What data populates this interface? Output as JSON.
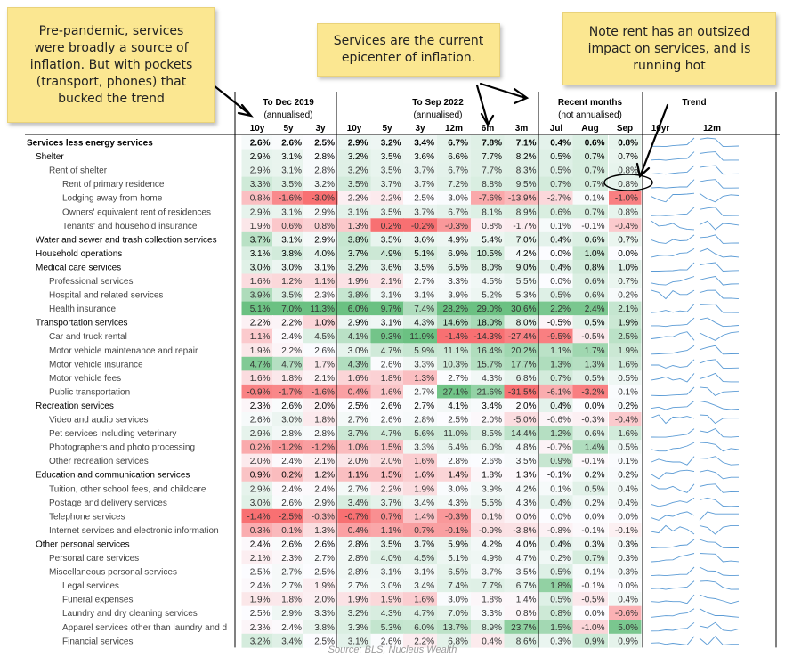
{
  "notes": [
    {
      "text": "Pre-pandemic, services\nwere broadly a source of\ninflation. But with pockets\n(transport, phones) that\nbucked the trend"
    },
    {
      "text": "Services are the current\nepicenter of inflation."
    },
    {
      "text": "Note rent has an outsized\nimpact on services, and is\nrunning hot"
    }
  ],
  "source": "Source: BLS, Nucleus Wealth",
  "chart_data": {
    "type": "table",
    "groups": [
      {
        "title": "To Dec 2019",
        "subtitle": "(annualised)",
        "columns": [
          "10y",
          "5y",
          "3y"
        ]
      },
      {
        "title": "To Sep 2022",
        "subtitle": "(annualised)",
        "columns": [
          "10y",
          "5y",
          "3y",
          "12m",
          "6m",
          "3m"
        ]
      },
      {
        "title": "Recent months",
        "subtitle": "(not annualised)",
        "columns": [
          "Jul",
          "Aug",
          "Sep"
        ]
      },
      {
        "title": "Trend",
        "subtitle": "",
        "columns": [
          "10yr",
          "12m"
        ]
      }
    ],
    "colors": {
      "positive": "#63be7b",
      "negative": "#f8696b",
      "neutral": "#fcfcff",
      "sparkline": "#5b9bd5"
    },
    "rows": [
      {
        "label": "Services less energy services",
        "level": 0,
        "bold": true,
        "values": [
          "2.6%",
          "2.6%",
          "2.5%",
          "2.9%",
          "3.2%",
          "3.4%",
          "6.7%",
          "7.8%",
          "7.1%",
          "0.4%",
          "0.6%",
          "0.8%"
        ]
      },
      {
        "label": "Shelter",
        "level": 1,
        "bold": false,
        "values": [
          "2.9%",
          "3.1%",
          "2.8%",
          "3.2%",
          "3.5%",
          "3.6%",
          "6.6%",
          "7.7%",
          "8.2%",
          "0.5%",
          "0.7%",
          "0.7%"
        ]
      },
      {
        "label": "Rent of shelter",
        "level": 2,
        "bold": false,
        "values": [
          "2.9%",
          "3.1%",
          "2.8%",
          "3.2%",
          "3.5%",
          "3.7%",
          "6.7%",
          "7.7%",
          "8.3%",
          "0.5%",
          "0.7%",
          "0.8%"
        ]
      },
      {
        "label": "Rent of primary residence",
        "level": 3,
        "bold": false,
        "values": [
          "3.3%",
          "3.5%",
          "3.2%",
          "3.5%",
          "3.7%",
          "3.7%",
          "7.2%",
          "8.8%",
          "9.5%",
          "0.7%",
          "0.7%",
          "0.8%"
        ]
      },
      {
        "label": "Lodging away from home",
        "level": 3,
        "bold": false,
        "values": [
          "0.8%",
          "-1.6%",
          "-3.0%",
          "2.2%",
          "2.2%",
          "2.5%",
          "3.0%",
          "-7.6%",
          "-13.9%",
          "-2.7%",
          "0.1%",
          "-1.0%"
        ]
      },
      {
        "label": "Owners' equivalent rent of residences",
        "level": 3,
        "bold": false,
        "values": [
          "2.9%",
          "3.1%",
          "2.9%",
          "3.1%",
          "3.5%",
          "3.7%",
          "6.7%",
          "8.1%",
          "8.9%",
          "0.6%",
          "0.7%",
          "0.8%"
        ]
      },
      {
        "label": "Tenants' and household insurance",
        "level": 3,
        "bold": false,
        "values": [
          "1.9%",
          "0.6%",
          "0.8%",
          "1.3%",
          "0.2%",
          "-0.2%",
          "-0.3%",
          "0.8%",
          "-1.7%",
          "0.1%",
          "-0.1%",
          "-0.4%"
        ]
      },
      {
        "label": "Water and sewer and trash collection services",
        "level": 1,
        "bold": false,
        "values": [
          "3.7%",
          "3.1%",
          "2.9%",
          "3.8%",
          "3.5%",
          "3.6%",
          "4.9%",
          "5.4%",
          "7.0%",
          "0.4%",
          "0.6%",
          "0.7%"
        ]
      },
      {
        "label": "Household operations",
        "level": 1,
        "bold": false,
        "values": [
          "3.1%",
          "3.8%",
          "4.0%",
          "3.7%",
          "4.9%",
          "5.1%",
          "6.9%",
          "10.5%",
          "4.2%",
          "0.0%",
          "1.0%",
          "0.0%"
        ]
      },
      {
        "label": "Medical care services",
        "level": 1,
        "bold": false,
        "values": [
          "3.0%",
          "3.0%",
          "3.1%",
          "3.2%",
          "3.6%",
          "3.5%",
          "6.5%",
          "8.0%",
          "9.0%",
          "0.4%",
          "0.8%",
          "1.0%"
        ]
      },
      {
        "label": "Professional services",
        "level": 2,
        "bold": false,
        "values": [
          "1.6%",
          "1.2%",
          "1.1%",
          "1.9%",
          "2.1%",
          "2.7%",
          "3.3%",
          "4.5%",
          "5.5%",
          "0.0%",
          "0.6%",
          "0.7%"
        ]
      },
      {
        "label": "Hospital and related services",
        "level": 2,
        "bold": false,
        "values": [
          "3.9%",
          "3.5%",
          "2.3%",
          "3.8%",
          "3.1%",
          "3.1%",
          "3.9%",
          "5.2%",
          "5.3%",
          "0.5%",
          "0.6%",
          "0.2%"
        ]
      },
      {
        "label": "Health insurance",
        "level": 2,
        "bold": false,
        "values": [
          "5.1%",
          "7.0%",
          "11.3%",
          "6.0%",
          "9.7%",
          "7.4%",
          "28.2%",
          "29.0%",
          "30.6%",
          "2.2%",
          "2.4%",
          "2.1%"
        ]
      },
      {
        "label": "Transportation services",
        "level": 1,
        "bold": false,
        "values": [
          "2.2%",
          "2.2%",
          "1.0%",
          "2.9%",
          "3.1%",
          "4.3%",
          "14.6%",
          "18.0%",
          "8.0%",
          "-0.5%",
          "0.5%",
          "1.9%"
        ]
      },
      {
        "label": "Car and truck rental",
        "level": 2,
        "bold": false,
        "values": [
          "1.1%",
          "2.4%",
          "4.5%",
          "4.1%",
          "9.3%",
          "11.9%",
          "-1.4%",
          "-14.3%",
          "-27.4%",
          "-9.5%",
          "-0.5%",
          "2.5%"
        ]
      },
      {
        "label": "Motor vehicle maintenance and repair",
        "level": 2,
        "bold": false,
        "values": [
          "1.9%",
          "2.2%",
          "2.6%",
          "3.0%",
          "4.7%",
          "5.9%",
          "11.1%",
          "16.4%",
          "20.2%",
          "1.1%",
          "1.7%",
          "1.9%"
        ]
      },
      {
        "label": "Motor vehicle insurance",
        "level": 2,
        "bold": false,
        "values": [
          "4.7%",
          "4.7%",
          "1.7%",
          "4.3%",
          "2.6%",
          "3.3%",
          "10.3%",
          "15.7%",
          "17.7%",
          "1.3%",
          "1.3%",
          "1.6%"
        ]
      },
      {
        "label": "Motor vehicle fees",
        "level": 2,
        "bold": false,
        "values": [
          "1.6%",
          "1.8%",
          "2.1%",
          "1.6%",
          "1.8%",
          "1.3%",
          "2.7%",
          "4.3%",
          "6.8%",
          "0.7%",
          "0.5%",
          "0.5%"
        ]
      },
      {
        "label": "Public transportation",
        "level": 2,
        "bold": false,
        "values": [
          "-0.9%",
          "-1.7%",
          "-1.6%",
          "0.4%",
          "1.6%",
          "2.7%",
          "27.1%",
          "21.6%",
          "-31.5%",
          "-6.1%",
          "-3.2%",
          "0.1%"
        ]
      },
      {
        "label": "Recreation services",
        "level": 1,
        "bold": false,
        "values": [
          "2.3%",
          "2.6%",
          "2.0%",
          "2.5%",
          "2.6%",
          "2.7%",
          "4.1%",
          "3.4%",
          "2.0%",
          "0.4%",
          "0.0%",
          "0.2%"
        ]
      },
      {
        "label": "Video and audio services",
        "level": 2,
        "bold": false,
        "values": [
          "2.6%",
          "3.0%",
          "1.8%",
          "2.7%",
          "2.6%",
          "2.8%",
          "2.5%",
          "2.0%",
          "-5.0%",
          "-0.6%",
          "-0.3%",
          "-0.4%"
        ]
      },
      {
        "label": "Pet services including veterinary",
        "level": 2,
        "bold": false,
        "values": [
          "2.9%",
          "2.8%",
          "2.8%",
          "3.7%",
          "4.7%",
          "5.6%",
          "11.0%",
          "8.5%",
          "14.4%",
          "1.2%",
          "0.6%",
          "1.6%"
        ]
      },
      {
        "label": "Photographers and photo processing",
        "level": 2,
        "bold": false,
        "values": [
          "0.2%",
          "-1.2%",
          "-1.2%",
          "1.0%",
          "1.5%",
          "3.3%",
          "6.4%",
          "6.0%",
          "4.8%",
          "-0.7%",
          "1.4%",
          "0.5%"
        ]
      },
      {
        "label": "Other recreation services",
        "level": 2,
        "bold": false,
        "values": [
          "2.0%",
          "2.4%",
          "2.1%",
          "2.0%",
          "2.0%",
          "1.6%",
          "2.8%",
          "2.6%",
          "3.5%",
          "0.9%",
          "-0.1%",
          "0.1%"
        ]
      },
      {
        "label": "Education and communication services",
        "level": 1,
        "bold": false,
        "values": [
          "0.9%",
          "0.2%",
          "1.2%",
          "1.1%",
          "1.5%",
          "1.6%",
          "1.4%",
          "1.8%",
          "1.3%",
          "-0.1%",
          "0.2%",
          "0.2%"
        ]
      },
      {
        "label": "Tuition, other school fees, and childcare",
        "level": 2,
        "bold": false,
        "values": [
          "2.9%",
          "2.4%",
          "2.4%",
          "2.7%",
          "2.2%",
          "1.9%",
          "3.0%",
          "3.9%",
          "4.2%",
          "0.1%",
          "0.5%",
          "0.4%"
        ]
      },
      {
        "label": "Postage and delivery services",
        "level": 2,
        "bold": false,
        "values": [
          "3.0%",
          "2.6%",
          "2.9%",
          "3.4%",
          "3.7%",
          "3.4%",
          "4.3%",
          "5.5%",
          "4.3%",
          "0.4%",
          "0.2%",
          "0.4%"
        ]
      },
      {
        "label": "Telephone services",
        "level": 2,
        "bold": false,
        "values": [
          "-1.4%",
          "-2.5%",
          "-0.3%",
          "-0.7%",
          "0.7%",
          "1.4%",
          "-0.3%",
          "0.1%",
          "0.0%",
          "0.0%",
          "0.0%",
          "0.0%"
        ]
      },
      {
        "label": "Internet services and electronic information",
        "level": 2,
        "bold": false,
        "values": [
          "0.3%",
          "0.1%",
          "1.3%",
          "0.4%",
          "1.1%",
          "0.7%",
          "-0.1%",
          "-0.9%",
          "-3.8%",
          "-0.8%",
          "-0.1%",
          "-0.1%"
        ]
      },
      {
        "label": "Other personal services",
        "level": 1,
        "bold": false,
        "values": [
          "2.4%",
          "2.6%",
          "2.6%",
          "2.8%",
          "3.5%",
          "3.7%",
          "5.9%",
          "4.2%",
          "4.0%",
          "0.4%",
          "0.3%",
          "0.3%"
        ]
      },
      {
        "label": "Personal care services",
        "level": 2,
        "bold": false,
        "values": [
          "2.1%",
          "2.3%",
          "2.7%",
          "2.8%",
          "4.0%",
          "4.5%",
          "5.1%",
          "4.9%",
          "4.7%",
          "0.2%",
          "0.7%",
          "0.3%"
        ]
      },
      {
        "label": "Miscellaneous personal services",
        "level": 2,
        "bold": false,
        "values": [
          "2.5%",
          "2.7%",
          "2.5%",
          "2.8%",
          "3.1%",
          "3.1%",
          "6.5%",
          "3.7%",
          "3.5%",
          "0.5%",
          "0.1%",
          "0.3%"
        ]
      },
      {
        "label": "Legal services",
        "level": 3,
        "bold": false,
        "values": [
          "2.4%",
          "2.7%",
          "1.9%",
          "2.7%",
          "3.0%",
          "3.4%",
          "7.4%",
          "7.7%",
          "6.7%",
          "1.8%",
          "-0.1%",
          "0.0%"
        ]
      },
      {
        "label": "Funeral expenses",
        "level": 3,
        "bold": false,
        "values": [
          "1.9%",
          "1.8%",
          "2.0%",
          "1.9%",
          "1.9%",
          "1.6%",
          "3.0%",
          "1.8%",
          "1.4%",
          "0.5%",
          "-0.5%",
          "0.4%"
        ]
      },
      {
        "label": "Laundry and dry cleaning services",
        "level": 3,
        "bold": false,
        "values": [
          "2.5%",
          "2.9%",
          "3.3%",
          "3.2%",
          "4.3%",
          "4.7%",
          "7.0%",
          "3.3%",
          "0.8%",
          "0.8%",
          "0.0%",
          "-0.6%"
        ]
      },
      {
        "label": "Apparel services other than laundry and d",
        "level": 3,
        "bold": false,
        "values": [
          "2.3%",
          "2.4%",
          "3.8%",
          "3.3%",
          "5.3%",
          "6.0%",
          "13.7%",
          "8.9%",
          "23.7%",
          "1.5%",
          "-1.0%",
          "5.0%"
        ]
      },
      {
        "label": "Financial services",
        "level": 3,
        "bold": false,
        "values": [
          "3.2%",
          "3.4%",
          "2.5%",
          "3.1%",
          "2.6%",
          "2.2%",
          "6.8%",
          "0.4%",
          "8.6%",
          "0.3%",
          "0.9%",
          "0.9%"
        ]
      }
    ]
  }
}
